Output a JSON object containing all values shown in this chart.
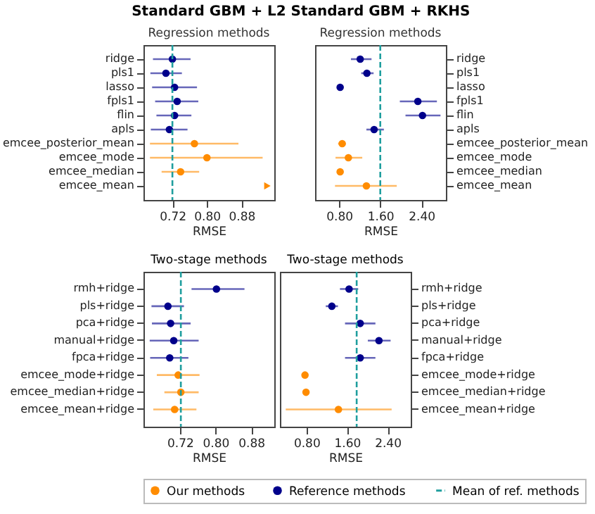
{
  "chart_data": [
    {
      "type": "scatter",
      "title": "Standard GBM + L2",
      "subtitle": "Regression methods",
      "xlabel": "RMSE",
      "orientation": "horizontal",
      "marker": "circle",
      "legend": "bottom",
      "categories": [
        "ridge",
        "pls1",
        "lasso",
        "fpls1",
        "flin",
        "apls",
        "emcee_posterior_mean",
        "emcee_mode",
        "emcee_median",
        "emcee_mean"
      ],
      "xlim": [
        0.653,
        0.956
      ],
      "xticks": [
        {
          "value": 0.72,
          "label": "0.72"
        },
        {
          "value": 0.8,
          "label": "0.80"
        },
        {
          "value": 0.88,
          "label": "0.88"
        }
      ],
      "series": [
        {
          "name": "Our methods",
          "color": "#ff8c00",
          "values": [
            null,
            null,
            null,
            null,
            null,
            null,
            0.771,
            0.8,
            0.739,
            null
          ],
          "errors": [
            null,
            null,
            null,
            null,
            null,
            null,
            [
              0.668,
              0.873
            ],
            [
              0.668,
              0.929
            ],
            [
              0.695,
              0.782
            ],
            null
          ]
        },
        {
          "name": "Reference methods",
          "color": "#00008b",
          "values": [
            0.72,
            0.705,
            0.725,
            0.731,
            0.725,
            0.713,
            null,
            null,
            null,
            null
          ],
          "errors": [
            [
              0.675,
              0.762
            ],
            [
              0.669,
              0.742
            ],
            [
              0.673,
              0.777
            ],
            [
              0.68,
              0.78
            ],
            [
              0.683,
              0.764
            ],
            [
              0.67,
              0.755
            ],
            null,
            null,
            null,
            null
          ]
        },
        {
          "color": "#ff8c00",
          "marker": "triangle",
          "values": [
            null,
            null,
            null,
            null,
            null,
            null,
            null,
            null,
            null,
            0.94
          ]
        }
      ],
      "ref_lines": [
        {
          "axis": "x",
          "value": 0.72,
          "label": "Mean of ref. methods",
          "color": "#1f9e9e",
          "line_style": "dashed"
        }
      ]
    },
    {
      "type": "scatter",
      "title": "Standard GBM + RKHS",
      "subtitle": "Regression methods",
      "xlabel": "RMSE",
      "orientation": "horizontal",
      "marker": "circle",
      "categories": [
        "ridge",
        "pls1",
        "lasso",
        "fpls1",
        "flin",
        "apls",
        "emcee_posterior_mean",
        "emcee_mode",
        "emcee_median",
        "emcee_mean"
      ],
      "xlim": [
        0.333,
        2.875
      ],
      "xticks": [
        {
          "value": 0.8,
          "label": "0.80"
        },
        {
          "value": 1.6,
          "label": "1.60"
        },
        {
          "value": 2.4,
          "label": "2.40"
        }
      ],
      "series": [
        {
          "color": "#ff8c00",
          "values": [
            null,
            null,
            null,
            null,
            null,
            null,
            0.86,
            0.98,
            0.82,
            1.33
          ],
          "errors": [
            null,
            null,
            null,
            null,
            null,
            null,
            [
              0.78,
              0.93
            ],
            [
              0.73,
              1.25
            ],
            [
              0.77,
              0.88
            ],
            [
              0.72,
              1.92
            ]
          ]
        },
        {
          "color": "#00008b",
          "values": [
            1.21,
            1.34,
            0.82,
            2.33,
            2.42,
            1.48,
            null,
            null,
            null,
            null
          ],
          "errors": [
            [
              1.03,
              1.43
            ],
            [
              1.23,
              1.47
            ],
            [
              0.76,
              0.88
            ],
            [
              1.98,
              2.7
            ],
            [
              2.09,
              2.77
            ],
            [
              1.33,
              1.67
            ],
            null,
            null,
            null,
            null
          ]
        }
      ],
      "ref_lines": [
        {
          "axis": "x",
          "value": 1.6,
          "color": "#1f9e9e",
          "line_style": "dashed"
        }
      ]
    },
    {
      "type": "scatter",
      "title": "Two-stage methods",
      "xlabel": "RMSE",
      "orientation": "horizontal",
      "marker": "circle",
      "categories": [
        "rmh+ridge",
        "pls+ridge",
        "pca+ridge",
        "manual+ridge",
        "fpca+ridge",
        "emcee_mode+ridge",
        "emcee_median+ridge",
        "emcee_mean+ridge"
      ],
      "xlim": [
        0.638,
        0.932
      ],
      "xticks": [
        {
          "value": 0.72,
          "label": "0.72"
        },
        {
          "value": 0.8,
          "label": "0.80"
        },
        {
          "value": 0.88,
          "label": "0.88"
        }
      ],
      "series": [
        {
          "color": "#ff8c00",
          "values": [
            null,
            null,
            null,
            null,
            null,
            0.716,
            0.722,
            0.708
          ],
          "errors": [
            null,
            null,
            null,
            null,
            null,
            [
              0.668,
              0.764
            ],
            [
              0.685,
              0.762
            ],
            [
              0.66,
              0.757
            ]
          ]
        },
        {
          "color": "#00008b",
          "values": [
            0.802,
            0.693,
            0.699,
            0.706,
            0.697,
            null,
            null,
            null
          ],
          "errors": [
            [
              0.746,
              0.865
            ],
            [
              0.656,
              0.729
            ],
            [
              0.657,
              0.744
            ],
            [
              0.652,
              0.762
            ],
            [
              0.653,
              0.739
            ],
            null,
            null,
            null
          ]
        }
      ],
      "ref_lines": [
        {
          "axis": "x",
          "value": 0.722,
          "color": "#1f9e9e",
          "line_style": "dashed"
        }
      ]
    },
    {
      "type": "scatter",
      "title": "Two-stage methods",
      "xlabel": "RMSE",
      "orientation": "horizontal",
      "marker": "circle",
      "categories": [
        "rmh+ridge",
        "pls+ridge",
        "pca+ridge",
        "manual+ridge",
        "fpca+ridge",
        "emcee_mode+ridge",
        "emcee_median+ridge",
        "emcee_mean+ridge"
      ],
      "xlim": [
        0.275,
        2.857
      ],
      "xticks": [
        {
          "value": 0.8,
          "label": "0.80"
        },
        {
          "value": 1.6,
          "label": "1.60"
        },
        {
          "value": 2.4,
          "label": "2.40"
        }
      ],
      "series": [
        {
          "color": "#ff8c00",
          "values": [
            null,
            null,
            null,
            null,
            null,
            0.77,
            0.79,
            1.43
          ],
          "errors": [
            null,
            null,
            null,
            null,
            null,
            [
              0.72,
              0.82
            ],
            [
              0.73,
              0.85
            ],
            [
              0.39,
              2.48
            ]
          ]
        },
        {
          "color": "#00008b",
          "values": [
            1.64,
            1.3,
            1.86,
            2.23,
            1.86,
            null,
            null,
            null
          ],
          "errors": [
            [
              1.46,
              1.82
            ],
            [
              1.18,
              1.42
            ],
            [
              1.56,
              2.16
            ],
            [
              2.01,
              2.46
            ],
            [
              1.56,
              2.16
            ],
            null,
            null,
            null
          ]
        }
      ],
      "ref_lines": [
        {
          "axis": "x",
          "value": 1.79,
          "color": "#1f9e9e",
          "line_style": "dashed"
        }
      ]
    }
  ]
}
